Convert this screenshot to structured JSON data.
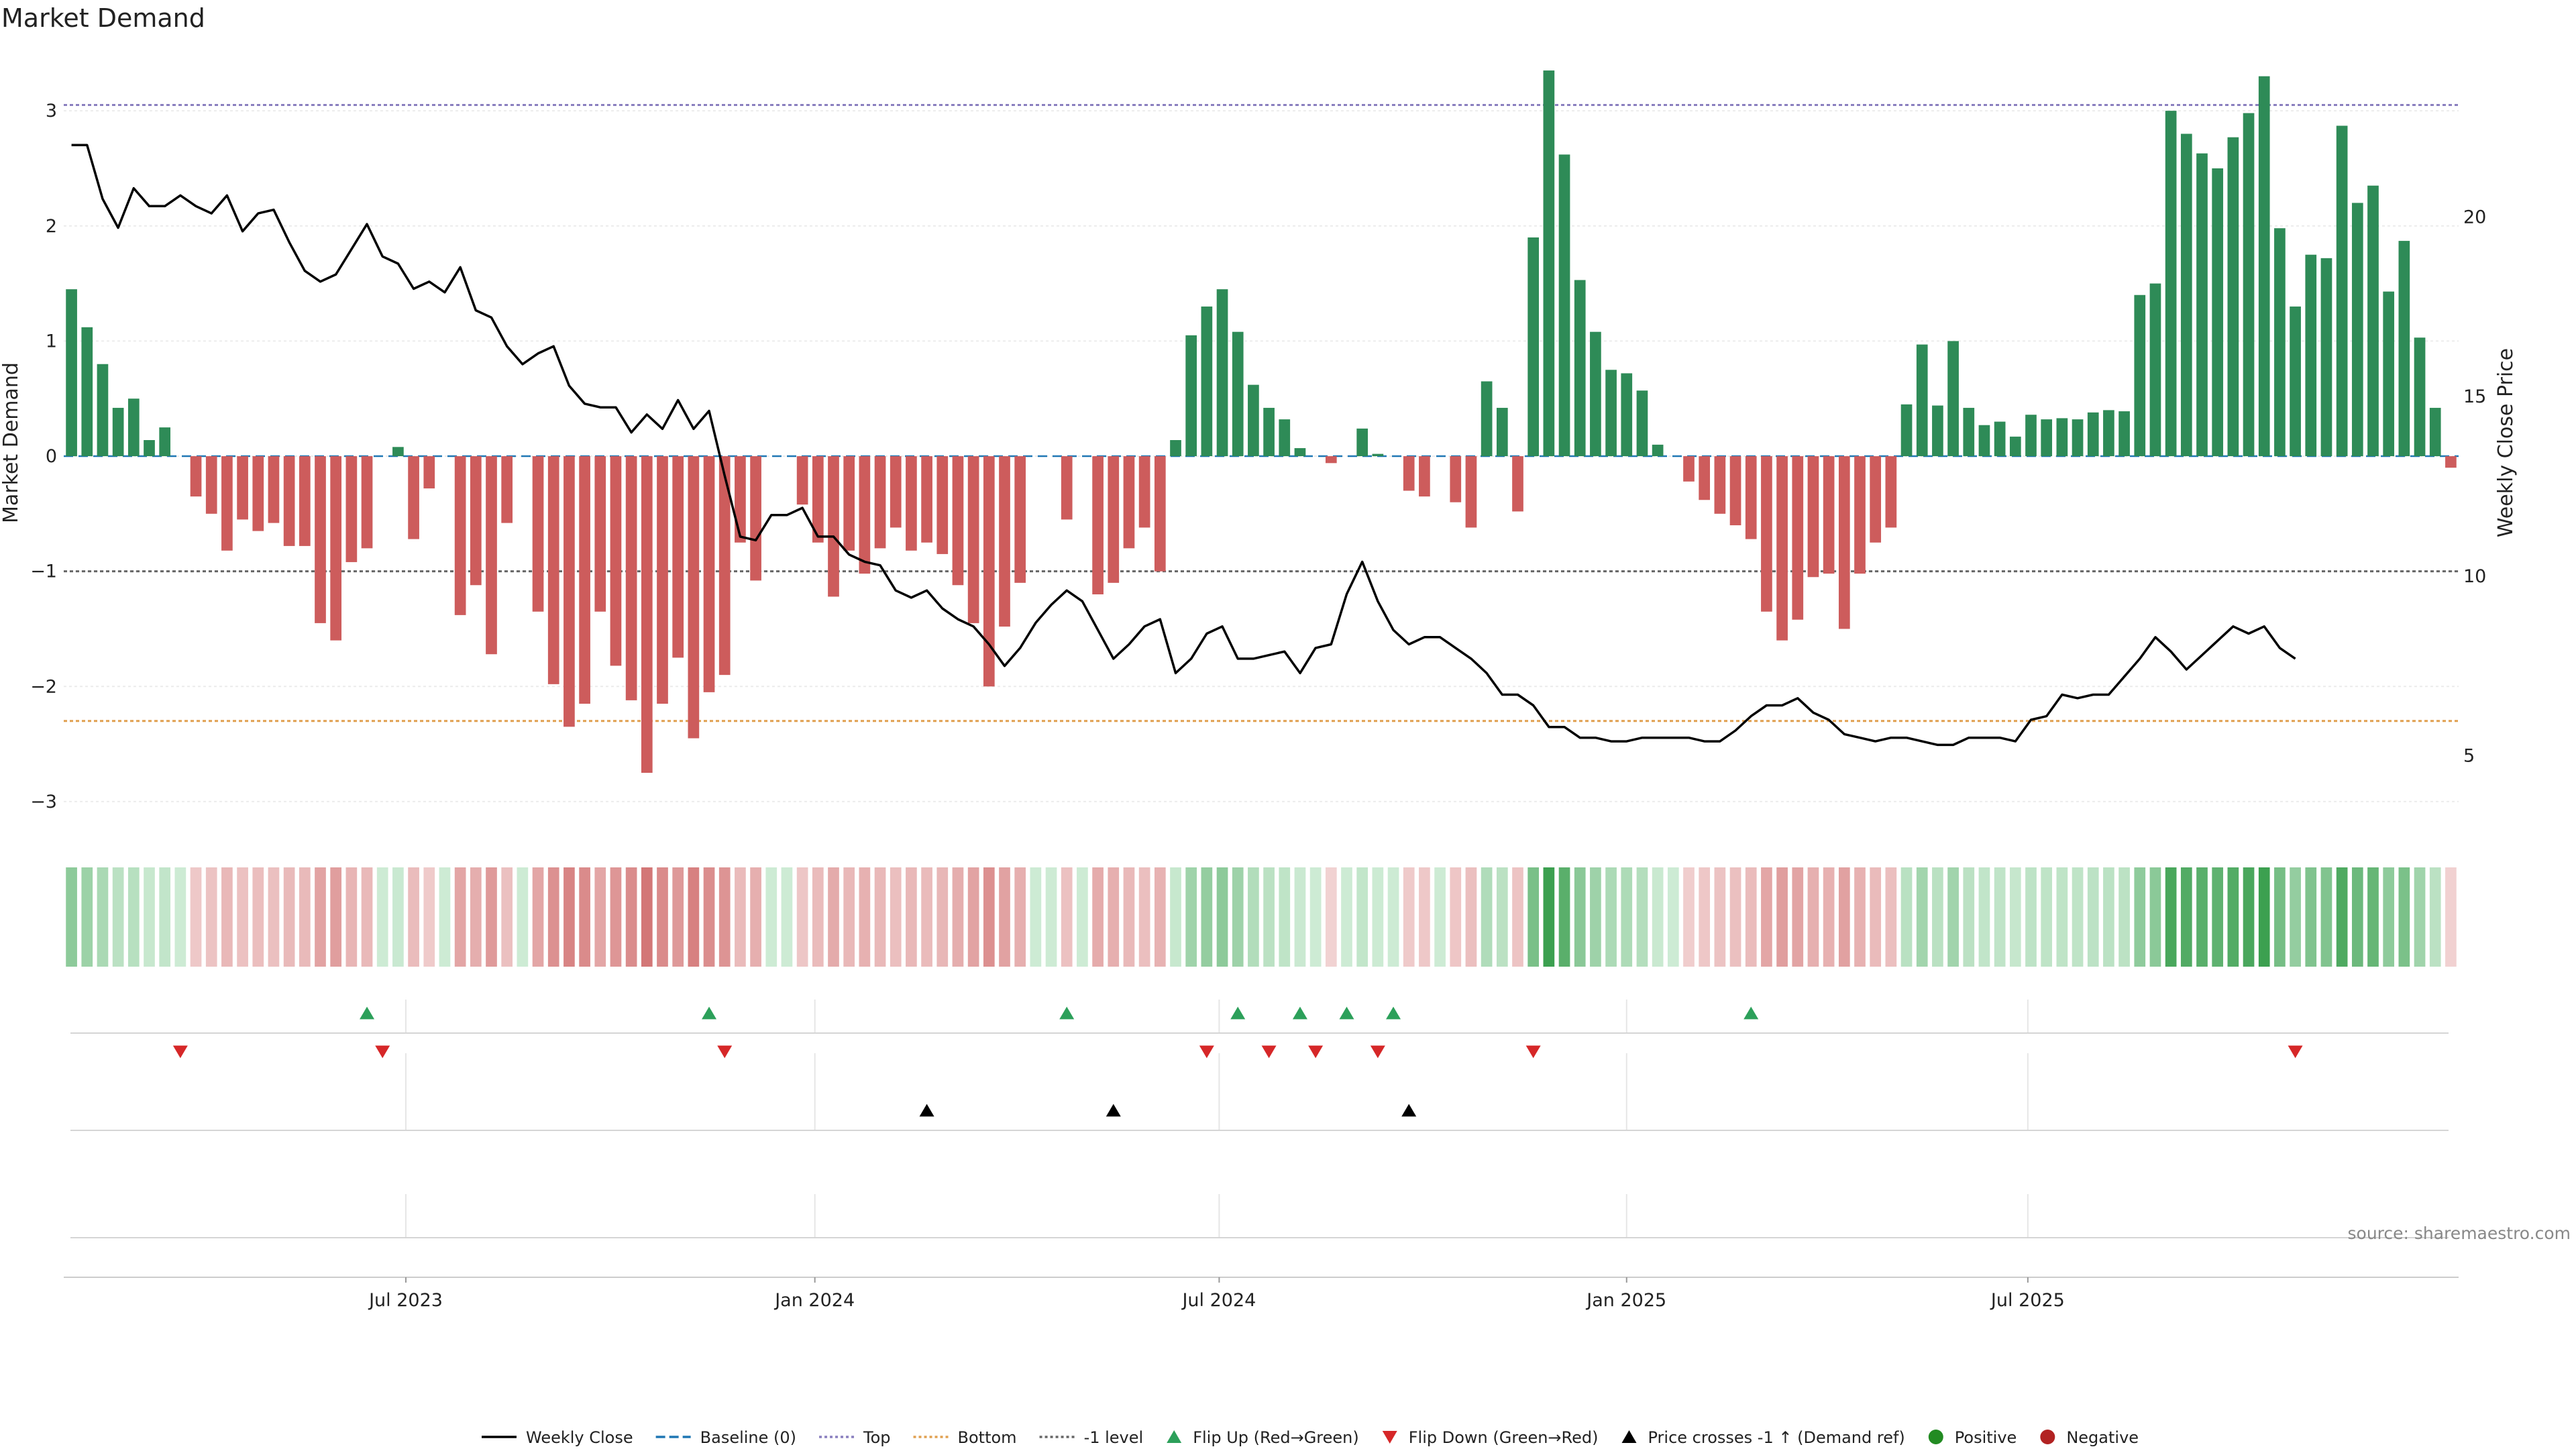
{
  "chart_data": {
    "type": "bar",
    "title": "Market Demand",
    "ylabel": "Market Demand",
    "y2label": "Weekly Close Price",
    "ylim": [
      -3.35,
      3.7
    ],
    "y2lim": [
      2.6,
      25.2
    ],
    "y_ticks": [
      3,
      2,
      1,
      0,
      -1,
      -2,
      -3
    ],
    "y_tick_labels": [
      "3",
      "2",
      "1",
      "0",
      "−1",
      "−2",
      "−3"
    ],
    "y2_ticks": [
      20,
      15,
      10,
      5
    ],
    "y2_tick_labels": [
      "20",
      "15",
      "10",
      "5"
    ],
    "x_tick_labels": [
      "Jul 2023",
      "Jan 2024",
      "Jul 2024",
      "Jan 2025",
      "Jul 2025"
    ],
    "x_tick_weeks": [
      22,
      48.3,
      74.3,
      100.5,
      126.3
    ],
    "reference_lines": [
      {
        "name": "Top",
        "value": 3.05,
        "color": "#8a7fbf"
      },
      {
        "name": "-1 level",
        "value": -1.0,
        "color": "#666666"
      },
      {
        "name": "Bottom",
        "value": -2.3,
        "color": "#e0a050"
      }
    ],
    "colors": {
      "positive": "#2e8b57",
      "negative": "#cd5c5c",
      "price": "#000000",
      "flip_up": "#2ca05a",
      "flip_down": "#d62728",
      "cross": "#000000"
    },
    "demand": [
      1.45,
      1.12,
      0.8,
      0.42,
      0.5,
      0.14,
      0.25,
      0,
      -0.35,
      -0.5,
      -0.82,
      -0.55,
      -0.65,
      -0.58,
      -0.78,
      -0.78,
      -1.45,
      -1.6,
      -0.92,
      -0.8,
      0,
      0.08,
      -0.72,
      -0.28,
      0,
      -1.38,
      -1.12,
      -1.72,
      -0.58,
      0,
      -1.35,
      -1.98,
      -2.35,
      -2.15,
      -1.35,
      -1.82,
      -2.12,
      -2.75,
      -2.15,
      -1.75,
      -2.45,
      -2.05,
      -1.9,
      -0.75,
      -1.08,
      0,
      0,
      -0.42,
      -0.75,
      -1.22,
      -0.82,
      -1.02,
      -0.8,
      -0.62,
      -0.82,
      -0.75,
      -0.85,
      -1.12,
      -1.45,
      -2.0,
      -1.48,
      -1.1,
      0,
      0,
      -0.55,
      0,
      -1.2,
      -1.1,
      -0.8,
      -0.62,
      -1.0,
      0.14,
      1.05,
      1.3,
      1.45,
      1.08,
      0.62,
      0.42,
      0.32,
      0.07,
      0,
      -0.06,
      0,
      0.24,
      0.02,
      0,
      -0.3,
      -0.35,
      0,
      -0.4,
      -0.62,
      0.65,
      0.42,
      -0.48,
      1.9,
      3.35,
      2.62,
      1.53,
      1.08,
      0.75,
      0.72,
      0.57,
      0.1,
      0,
      -0.22,
      -0.38,
      -0.5,
      -0.6,
      -0.72,
      -1.35,
      -1.6,
      -1.42,
      -1.05,
      -1.02,
      -1.5,
      -1.02,
      -0.75,
      -0.62,
      0.45,
      0.97,
      0.44,
      1.0,
      0.42,
      0.27,
      0.3,
      0.17,
      0.36,
      0.32,
      0.33,
      0.32,
      0.38,
      0.4,
      0.39,
      1.4,
      1.5,
      3.0,
      2.8,
      2.63,
      2.5,
      2.77,
      2.98,
      3.3,
      1.98,
      1.3,
      1.75,
      1.72,
      2.87,
      2.2,
      2.35,
      1.43,
      1.87,
      1.03,
      0.42,
      -0.1
    ],
    "price": [
      22.0,
      22.0,
      20.5,
      19.7,
      20.8,
      20.3,
      20.3,
      20.6,
      20.3,
      20.1,
      20.6,
      19.6,
      20.1,
      20.2,
      19.3,
      18.5,
      18.2,
      18.4,
      19.1,
      19.8,
      18.9,
      18.7,
      18.0,
      18.2,
      17.9,
      18.6,
      17.4,
      17.2,
      16.4,
      15.9,
      16.2,
      16.4,
      15.3,
      14.8,
      14.7,
      14.7,
      14.0,
      14.5,
      14.1,
      14.9,
      14.1,
      14.6,
      12.8,
      11.1,
      11.0,
      11.7,
      11.7,
      11.9,
      11.1,
      11.1,
      10.6,
      10.4,
      10.3,
      9.6,
      9.4,
      9.6,
      9.1,
      8.8,
      8.6,
      8.1,
      7.5,
      8.0,
      8.7,
      9.2,
      9.6,
      9.3,
      8.5,
      7.7,
      8.1,
      8.6,
      8.8,
      7.3,
      7.7,
      8.4,
      8.6,
      7.7,
      7.7,
      7.8,
      7.9,
      7.3,
      8.0,
      8.1,
      9.5,
      10.4,
      9.3,
      8.5,
      8.1,
      8.3,
      8.3,
      8.0,
      7.7,
      7.3,
      6.7,
      6.7,
      6.4,
      5.8,
      5.8,
      5.5,
      5.5,
      5.4,
      5.4,
      5.5,
      5.5,
      5.5,
      5.5,
      5.4,
      5.4,
      5.7,
      6.1,
      6.4,
      6.4,
      6.6,
      6.2,
      6.0,
      5.6,
      5.5,
      5.4,
      5.5,
      5.5,
      5.4,
      5.3,
      5.3,
      5.5,
      5.5,
      5.5,
      5.4,
      6.0,
      6.1,
      6.7,
      6.6,
      6.7,
      6.7,
      7.2,
      7.7,
      8.3,
      7.9,
      7.4,
      7.8,
      8.2,
      8.6,
      8.4,
      8.6,
      8.0,
      7.7,
      7.7,
      7.6
    ],
    "price_weeks": [
      0.5,
      1.5,
      2.5,
      3.5,
      4.5,
      5.5,
      6.5,
      7.5,
      8.5,
      9.5,
      10.5,
      11.5,
      12.5,
      13.5,
      14.5,
      15.5,
      16.5,
      17.5,
      18.5,
      19.5,
      20.5,
      21.5,
      22.5,
      23.5,
      24.5,
      25.5,
      26.5,
      27.5,
      28.5,
      29.5,
      30.5,
      31.5,
      32.5,
      33.5,
      34.5,
      35.5,
      36.5,
      37.5,
      38.5,
      39.5,
      40.5,
      41.5,
      42.5,
      43.5,
      44.5,
      45.5,
      46.5,
      47.5,
      48.5,
      49.5,
      50.5,
      51.5,
      52.5,
      53.5,
      54.5,
      55.5,
      56.5,
      57.5,
      58.5,
      59.5,
      60.5,
      61.5,
      62.5,
      63.5,
      64.5,
      65.5,
      66.5,
      67.5,
      68.5,
      69.5,
      70.5,
      71.5,
      72.5,
      73.5,
      74.5,
      75.5,
      76.5,
      77.5,
      78.5,
      79.5,
      80.5,
      81.5,
      82.5,
      83.5,
      84.5,
      85.5,
      86.5,
      87.5,
      88.5,
      89.5,
      90.5,
      91.5,
      92.5,
      93.5,
      94.5,
      95.5,
      96.5,
      97.5,
      98.5,
      99.5,
      100.5,
      101.5,
      102.5,
      103.5,
      104.5,
      105.5,
      106.5,
      107.5,
      108.5,
      109.5,
      110.5,
      111.5,
      112.5,
      113.5,
      114.5,
      115.5,
      116.5,
      117.5,
      118.5,
      119.5,
      120.5,
      121.5,
      122.5,
      123.5,
      124.5,
      125.5,
      126.5,
      127.5,
      128.5,
      129.5,
      130.5,
      131.5,
      132.5,
      133.5,
      134.5,
      135.5,
      136.5,
      137.5,
      138.5,
      139.5,
      140.5,
      141.5,
      142.5,
      143.5
    ],
    "flip_up_weeks": [
      19,
      41,
      64,
      75,
      79,
      82,
      85,
      108
    ],
    "flip_down_weeks": [
      7,
      20,
      42,
      73,
      77,
      80,
      84,
      94,
      143
    ],
    "price_cross_weeks": [
      55,
      67,
      86
    ],
    "legend": [
      {
        "label": "Weekly Close",
        "kind": "line-solid",
        "color": "#000000"
      },
      {
        "label": "Baseline (0)",
        "kind": "line-dash",
        "color": "#1f77b4"
      },
      {
        "label": "Top",
        "kind": "line-dot",
        "color": "#8a7fbf"
      },
      {
        "label": "Bottom",
        "kind": "line-dot",
        "color": "#e0a050"
      },
      {
        "label": "-1 level",
        "kind": "line-dot",
        "color": "#666666"
      },
      {
        "label": "Flip Up (Red→Green)",
        "kind": "tri-up",
        "color": "#2ca05a"
      },
      {
        "label": "Flip Down (Green→Red)",
        "kind": "tri-down",
        "color": "#d62728"
      },
      {
        "label": "Price crosses -1 ↑ (Demand ref)",
        "kind": "tri-up",
        "color": "#000000"
      },
      {
        "label": "Positive",
        "kind": "dot",
        "color": "#228b22"
      },
      {
        "label": "Negative",
        "kind": "dot",
        "color": "#b22222"
      }
    ],
    "source_note": "source: sharemaestro.com"
  }
}
